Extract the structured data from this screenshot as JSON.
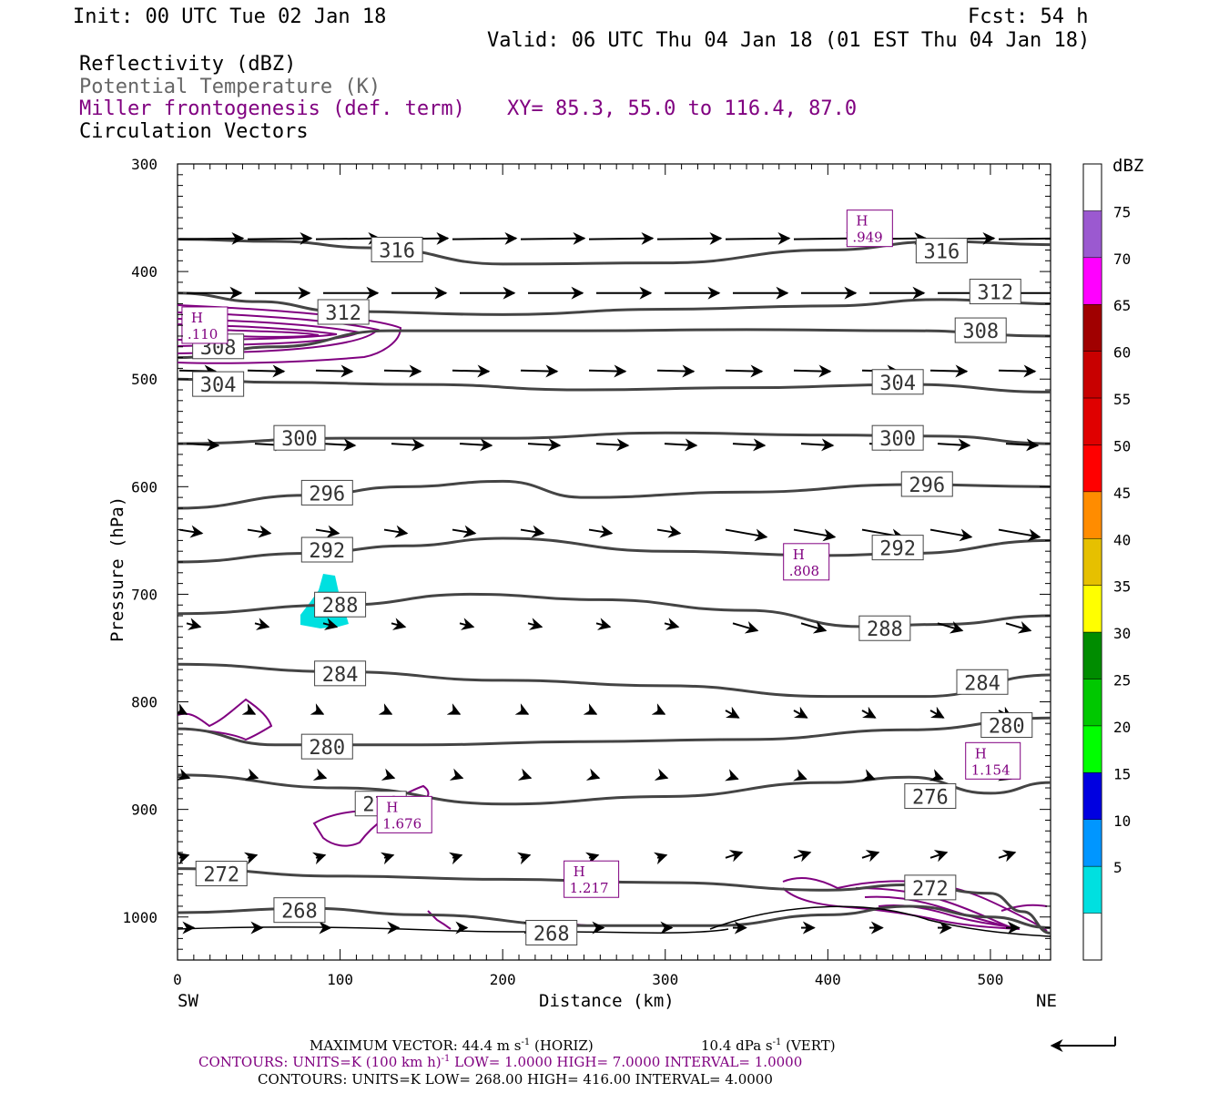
{
  "header": {
    "init": "Init: 00 UTC Tue 02 Jan 18",
    "fcst": "Fcst:   54 h",
    "valid": "Valid: 06 UTC Thu 04 Jan 18 (01 EST Thu 04 Jan 18)",
    "fields": [
      "Reflectivity (dBZ)",
      "Potential Temperature (K)",
      "Miller frontogenesis (def. term)",
      "Circulation Vectors"
    ],
    "xy": "XY=  85.3, 55.0 to 116.4, 87.0"
  },
  "colors": {
    "theta": "#444444",
    "fronto": "#800080",
    "reflectivity_5": "#00e0e0"
  },
  "chart_data": {
    "type": "cross-section",
    "xlabel": "Distance (km)",
    "ylabel": "Pressure (hPa)",
    "xlim": [
      0,
      537
    ],
    "ylim": [
      1040,
      300
    ],
    "x_ticks": [
      "0",
      "100",
      "200",
      "300",
      "400",
      "500"
    ],
    "y_ticks": [
      "300",
      "400",
      "500",
      "600",
      "700",
      "800",
      "900",
      "1000"
    ],
    "x_end_labels": {
      "left": "SW",
      "right": "NE"
    },
    "colorbar": {
      "unit": "dBZ",
      "levels": [
        "5",
        "10",
        "15",
        "20",
        "25",
        "30",
        "35",
        "40",
        "45",
        "50",
        "55",
        "60",
        "65",
        "70",
        "75"
      ],
      "colors": [
        "#00e0e0",
        "#0096ff",
        "#0000e0",
        "#00ff00",
        "#00c800",
        "#008c00",
        "#ffff00",
        "#e6c000",
        "#ff8c00",
        "#ff0000",
        "#e00000",
        "#c80000",
        "#a00000",
        "#ff00ff",
        "#9b59d0"
      ]
    },
    "theta_contours": [
      {
        "label": "316",
        "points": [
          [
            0,
            370
          ],
          [
            60,
            372
          ],
          [
            120,
            378
          ],
          [
            200,
            393
          ],
          [
            300,
            392
          ],
          [
            400,
            380
          ],
          [
            470,
            372
          ],
          [
            537,
            375
          ]
        ],
        "labels_at": [
          [
            135,
            380
          ],
          [
            470,
            381
          ]
        ]
      },
      {
        "label": "312",
        "points": [
          [
            0,
            420
          ],
          [
            50,
            428
          ],
          [
            100,
            437
          ],
          [
            200,
            440
          ],
          [
            300,
            435
          ],
          [
            400,
            432
          ],
          [
            470,
            426
          ],
          [
            537,
            430
          ]
        ],
        "labels_at": [
          [
            102,
            438
          ],
          [
            503,
            419
          ]
        ]
      },
      {
        "label": "308",
        "points": [
          [
            0,
            480
          ],
          [
            60,
            470
          ],
          [
            130,
            455
          ],
          [
            250,
            455
          ],
          [
            350,
            454
          ],
          [
            450,
            455
          ],
          [
            537,
            460
          ]
        ],
        "labels_at": [
          [
            25,
            470
          ],
          [
            494,
            455
          ]
        ]
      },
      {
        "label": "304",
        "points": [
          [
            0,
            500
          ],
          [
            60,
            503
          ],
          [
            150,
            505
          ],
          [
            250,
            510
          ],
          [
            350,
            508
          ],
          [
            450,
            505
          ],
          [
            537,
            512
          ]
        ],
        "labels_at": [
          [
            25,
            505
          ],
          [
            443,
            503
          ]
        ]
      },
      {
        "label": "300",
        "points": [
          [
            0,
            560
          ],
          [
            100,
            555
          ],
          [
            200,
            555
          ],
          [
            300,
            550
          ],
          [
            400,
            552
          ],
          [
            470,
            553
          ],
          [
            537,
            560
          ]
        ],
        "labels_at": [
          [
            75,
            555
          ],
          [
            443,
            555
          ]
        ]
      },
      {
        "label": "296",
        "points": [
          [
            0,
            620
          ],
          [
            80,
            608
          ],
          [
            140,
            600
          ],
          [
            200,
            595
          ],
          [
            250,
            610
          ],
          [
            350,
            605
          ],
          [
            450,
            598
          ],
          [
            537,
            600
          ]
        ],
        "labels_at": [
          [
            92,
            606
          ],
          [
            461,
            598
          ]
        ]
      },
      {
        "label": "292",
        "points": [
          [
            0,
            670
          ],
          [
            80,
            662
          ],
          [
            140,
            655
          ],
          [
            200,
            648
          ],
          [
            300,
            660
          ],
          [
            400,
            664
          ],
          [
            450,
            662
          ],
          [
            537,
            650
          ]
        ],
        "labels_at": [
          [
            92,
            659
          ],
          [
            443,
            657
          ]
        ]
      },
      {
        "label": "288",
        "points": [
          [
            0,
            718
          ],
          [
            100,
            710
          ],
          [
            180,
            700
          ],
          [
            260,
            705
          ],
          [
            350,
            715
          ],
          [
            420,
            730
          ],
          [
            470,
            728
          ],
          [
            537,
            720
          ]
        ],
        "labels_at": [
          [
            100,
            710
          ],
          [
            435,
            732
          ]
        ]
      },
      {
        "label": "284",
        "points": [
          [
            0,
            765
          ],
          [
            100,
            772
          ],
          [
            200,
            780
          ],
          [
            300,
            785
          ],
          [
            400,
            795
          ],
          [
            460,
            795
          ],
          [
            537,
            775
          ]
        ],
        "labels_at": [
          [
            100,
            774
          ],
          [
            495,
            782
          ]
        ]
      },
      {
        "label": "280",
        "points": [
          [
            0,
            825
          ],
          [
            60,
            840
          ],
          [
            150,
            840
          ],
          [
            250,
            837
          ],
          [
            350,
            835
          ],
          [
            450,
            826
          ],
          [
            537,
            815
          ]
        ],
        "labels_at": [
          [
            92,
            842
          ],
          [
            510,
            822
          ]
        ]
      },
      {
        "label": "276",
        "points": [
          [
            0,
            868
          ],
          [
            100,
            880
          ],
          [
            200,
            895
          ],
          [
            300,
            888
          ],
          [
            400,
            875
          ],
          [
            450,
            870
          ],
          [
            500,
            885
          ],
          [
            537,
            875
          ]
        ],
        "labels_at": [
          [
            125,
            895
          ],
          [
            463,
            888
          ]
        ]
      },
      {
        "label": "272",
        "points": [
          [
            0,
            955
          ],
          [
            100,
            962
          ],
          [
            200,
            965
          ],
          [
            300,
            968
          ],
          [
            400,
            975
          ],
          [
            450,
            970
          ],
          [
            500,
            978
          ],
          [
            520,
            995
          ],
          [
            537,
            1015
          ]
        ],
        "labels_at": [
          [
            27,
            960
          ],
          [
            463,
            973
          ]
        ]
      },
      {
        "label": "268",
        "points": [
          [
            0,
            996
          ],
          [
            80,
            992
          ],
          [
            150,
            998
          ],
          [
            250,
            1008
          ],
          [
            330,
            1008
          ],
          [
            400,
            998
          ],
          [
            450,
            990
          ],
          [
            500,
            1000
          ],
          [
            537,
            1010
          ]
        ],
        "labels_at": [
          [
            75,
            994
          ],
          [
            230,
            1015
          ]
        ]
      }
    ],
    "frontogenesis_maxima": [
      {
        "marker": "H",
        "value": ".949",
        "x": 414,
        "p": 370
      },
      {
        "marker": "H",
        "value": ".110",
        "x": 5,
        "p": 460
      },
      {
        "marker": "H",
        "value": ".808",
        "x": 375,
        "p": 680
      },
      {
        "marker": "H",
        "value": "1.154",
        "x": 487,
        "p": 865
      },
      {
        "marker": "H",
        "value": "1.676",
        "x": 125,
        "p": 915
      },
      {
        "marker": "H",
        "value": "1.217",
        "x": 240,
        "p": 975
      }
    ]
  },
  "footer": {
    "max_vector": "MAXIMUM VECTOR:  44.4 m s",
    "max_vector_horiz_tail": " (HORIZ)",
    "max_vector_vert": "10.4 dPa s",
    "max_vector_vert_tail": " (VERT)",
    "sup": "-1",
    "contours_purple_a": "CONTOURS:  UNITS=K (100 km h)",
    "contours_purple_b": "  LOW=   1.0000       HIGH=   7.0000       INTERVAL=    1.0000",
    "contours_black": "CONTOURS:  UNITS=K  LOW=   268.00         HIGH=  416.00         INTERVAL=     4.0000"
  }
}
